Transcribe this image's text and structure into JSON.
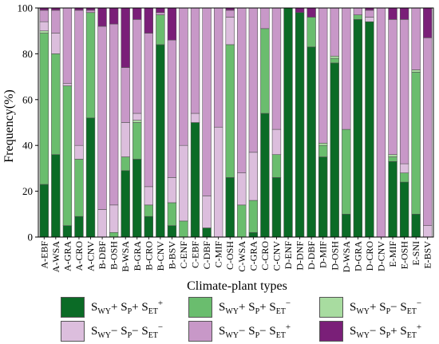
{
  "chart_data": {
    "type": "bar",
    "stacked": true,
    "title": "",
    "xlabel": "Climate-plant types",
    "ylabel": "Frequency(%)",
    "ylim": [
      0,
      100
    ],
    "yticks": [
      0,
      20,
      40,
      60,
      80,
      100
    ],
    "grid": false,
    "legend_position": "bottom",
    "categories": [
      "A-EBF",
      "A-WSA",
      "A-GRA",
      "A-CRO",
      "A-CNV",
      "B-DBF",
      "B-OSH",
      "B-WSA",
      "B-GRA",
      "B-CRO",
      "B-CNV",
      "B-BSV",
      "C-ENF",
      "C-EBF",
      "C-DBF",
      "C-MIF",
      "C-OSH",
      "C-WSA",
      "C-GRA",
      "C-CRO",
      "C-CNV",
      "D-ENF",
      "D-DNF",
      "D-DBF",
      "D-MIF",
      "D-OSH",
      "D-WSA",
      "D-GRA",
      "D-CRO",
      "D-CNV",
      "E-MIF",
      "E-OSH",
      "E-SNI",
      "E-BSV"
    ],
    "series": [
      {
        "legend": {
          "pre": "S",
          "sub": "WY",
          "sup": "+"
        },
        "legend_parts": [
          "S",
          "WY",
          "+ S",
          "P",
          "+ S",
          "ET",
          "+"
        ],
        "color": "#0b6b26",
        "values": [
          23,
          36,
          5,
          9,
          52,
          0,
          0,
          29,
          34,
          9,
          84,
          5,
          0,
          50,
          4,
          0,
          26,
          0,
          2,
          54,
          26,
          100,
          98,
          83,
          35,
          76,
          10,
          95,
          94,
          0,
          33,
          24,
          10,
          0
        ]
      },
      {
        "legend_parts": [
          "S",
          "WY",
          "+ S",
          "P",
          "+ S",
          "ET",
          "−"
        ],
        "color": "#6abd6e",
        "values": [
          66,
          44,
          61,
          25,
          46,
          0,
          2,
          6,
          16,
          5,
          13,
          10,
          7,
          0,
          0,
          0,
          58,
          14,
          14,
          37,
          10,
          0,
          0,
          13,
          5,
          2,
          37,
          2,
          0,
          0,
          2,
          4,
          62,
          0
        ]
      },
      {
        "legend_parts": [
          "S",
          "WY",
          "+ S",
          "P",
          "− S",
          "ET",
          "−"
        ],
        "color": "#a8dca0",
        "values": [
          1,
          0,
          0,
          0,
          0,
          0,
          0,
          0,
          1,
          0,
          0,
          0,
          0,
          0,
          0,
          0,
          0,
          0,
          0,
          0,
          0,
          0,
          0,
          0,
          1,
          1,
          0,
          0,
          0,
          0,
          1,
          0,
          1,
          0
        ]
      },
      {
        "legend_parts": [
          "S",
          "WY",
          "− S",
          "P",
          "− S",
          "ET",
          "−"
        ],
        "color": "#dcbedd",
        "values": [
          4,
          9,
          1,
          6,
          0,
          12,
          12,
          15,
          3,
          8,
          0,
          11,
          33,
          4,
          14,
          48,
          12,
          14,
          21,
          0,
          11,
          0,
          0,
          0,
          0,
          0,
          0,
          0,
          2,
          0,
          0,
          4,
          0,
          5
        ]
      },
      {
        "legend_parts": [
          "S",
          "WY",
          "− S",
          "P",
          "− S",
          "ET",
          "+"
        ],
        "color": "#c898c8",
        "values": [
          5,
          10,
          33,
          59,
          1,
          80,
          79,
          24,
          41,
          67,
          1,
          60,
          60,
          46,
          82,
          52,
          3,
          72,
          63,
          9,
          53,
          0,
          0,
          0,
          59,
          21,
          53,
          3,
          3,
          100,
          59,
          63,
          27,
          82
        ]
      },
      {
        "legend_parts": [
          "S",
          "WY",
          "− S",
          "P",
          "+ S",
          "ET",
          "+"
        ],
        "color": "#7a1f78",
        "values": [
          1,
          1,
          0,
          1,
          1,
          8,
          7,
          26,
          5,
          11,
          2,
          14,
          0,
          0,
          0,
          0,
          1,
          0,
          0,
          0,
          0,
          0,
          2,
          4,
          0,
          0,
          0,
          0,
          1,
          0,
          5,
          5,
          0,
          13
        ]
      }
    ]
  }
}
